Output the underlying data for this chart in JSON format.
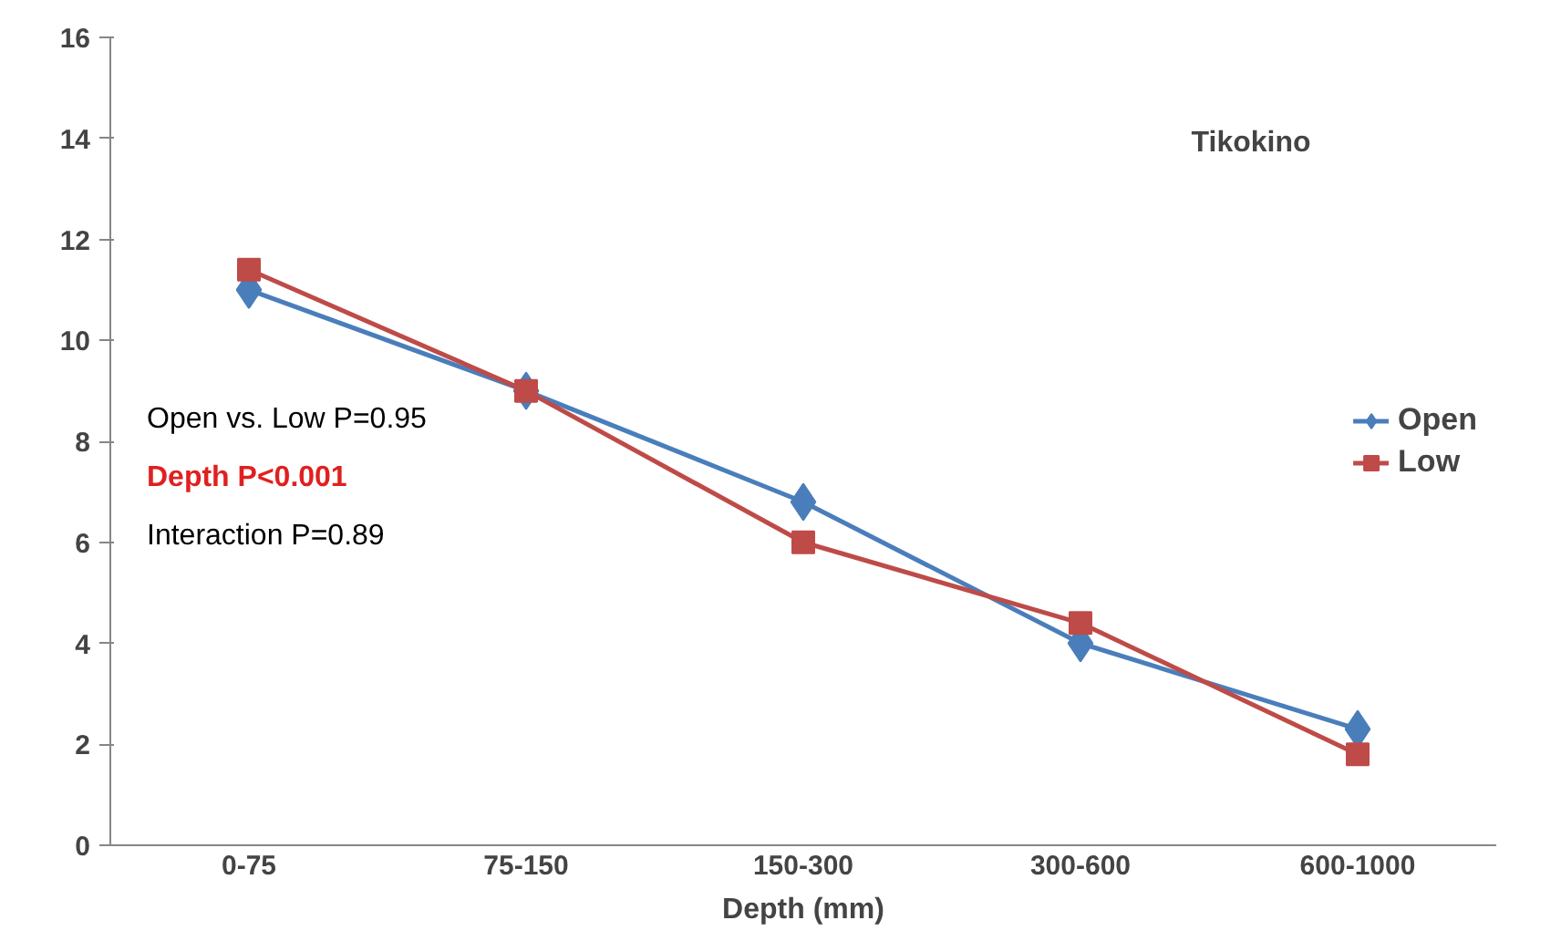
{
  "chart_data": {
    "type": "line",
    "xlabel": "Depth (mm)",
    "categories": [
      "0-75",
      "75-150",
      "150-300",
      "300-600",
      "600-1000"
    ],
    "series": [
      {
        "name": "Open",
        "color": "#4a7ebb",
        "marker": "diamond",
        "values": [
          11.0,
          9.0,
          6.8,
          4.0,
          2.3
        ]
      },
      {
        "name": "Low",
        "color": "#be4b48",
        "marker": "square",
        "values": [
          11.4,
          9.0,
          6.0,
          4.4,
          1.8
        ]
      }
    ],
    "ylim": [
      0,
      16
    ],
    "yticks": [
      0,
      2,
      4,
      6,
      8,
      10,
      12,
      14,
      16
    ],
    "grid": false,
    "legend": "right",
    "line_style": "solid",
    "annotations": [
      "Tikokino",
      "Open vs. Low P=0.95",
      "Depth P<0.001",
      "Interaction P=0.89"
    ]
  }
}
